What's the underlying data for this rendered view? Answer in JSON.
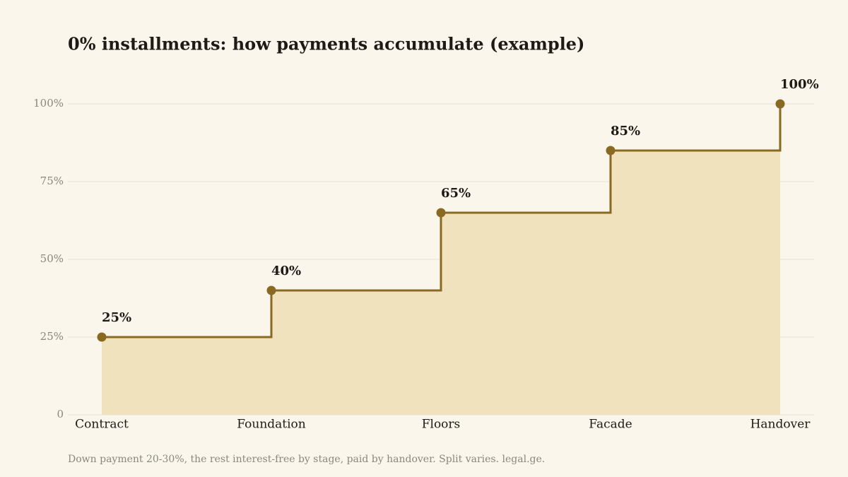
{
  "chart_data": {
    "type": "step",
    "title": "0% installments: how payments accumulate (example)",
    "categories": [
      "Contract",
      "Foundation",
      "Floors",
      "Facade",
      "Handover"
    ],
    "values": [
      25,
      40,
      65,
      85,
      100
    ],
    "value_labels": [
      "25%",
      "40%",
      "65%",
      "85%",
      "100%"
    ],
    "color": "#8a6a22",
    "fill_color": "#f0e2bd",
    "ylim": [
      0,
      100
    ],
    "yticks": [
      0,
      {
        "value": 25,
        "label": "25%"
      },
      {
        "value": 50,
        "label": "50%"
      },
      {
        "value": 75,
        "label": "75%"
      },
      {
        "value": 100,
        "label": "100%"
      }
    ],
    "grid": true,
    "caption": "Down payment 20-30%, the rest interest-free by stage, paid by handover. Split varies. legal.ge."
  }
}
